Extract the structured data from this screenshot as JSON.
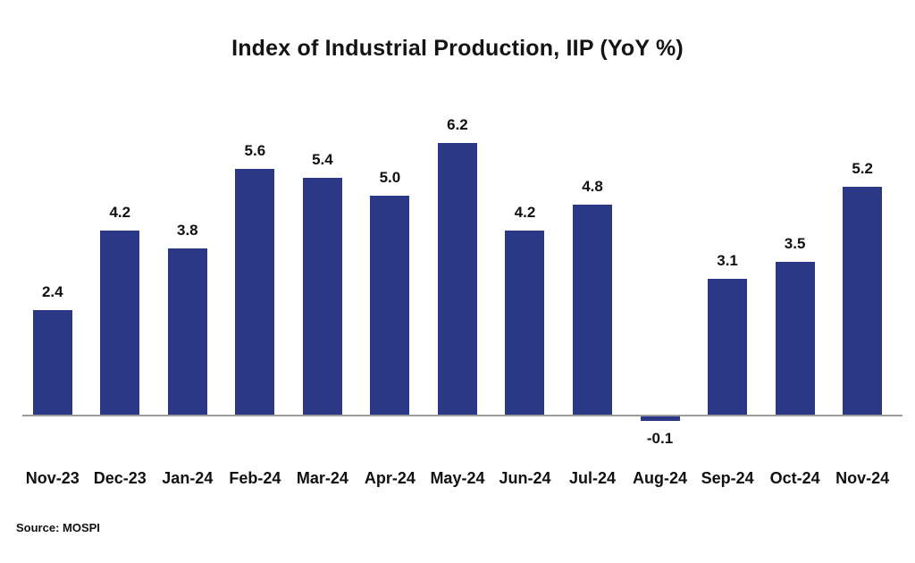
{
  "source_note": "Source: MOSPI",
  "colors": {
    "bar": "#2B3886",
    "axis": "#9C9C9C",
    "text": "#111111"
  },
  "chart_data": {
    "type": "bar",
    "title": "Index of Industrial Production, IIP (YoY %)",
    "categories": [
      "Nov-23",
      "Dec-23",
      "Jan-24",
      "Feb-24",
      "Mar-24",
      "Apr-24",
      "May-24",
      "Jun-24",
      "Jul-24",
      "Aug-24",
      "Sep-24",
      "Oct-24",
      "Nov-24"
    ],
    "values": [
      2.4,
      4.2,
      3.8,
      5.6,
      5.4,
      5.0,
      6.2,
      4.2,
      4.8,
      -0.1,
      3.1,
      3.5,
      5.2
    ],
    "xlabel": "",
    "ylabel": "YoY %",
    "ylim": [
      -0.5,
      6.5
    ],
    "grid": false,
    "legend": null,
    "data_labels": true
  }
}
